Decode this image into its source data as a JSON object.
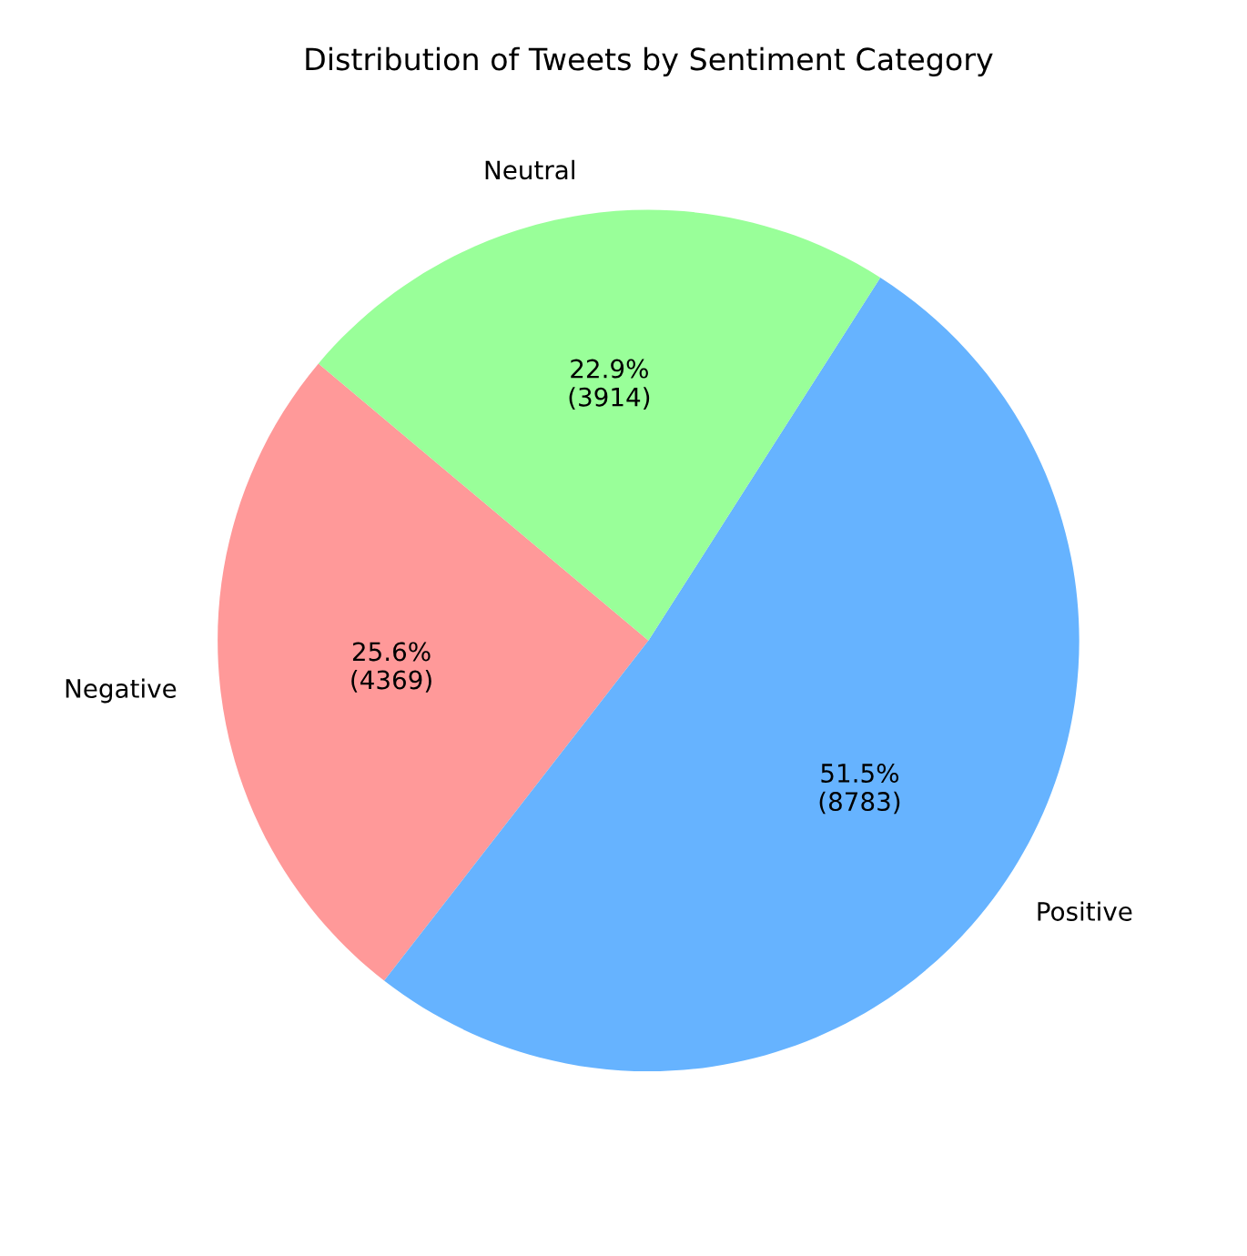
{
  "chart_data": {
    "type": "pie",
    "title": "Distribution of Tweets by Sentiment Category",
    "categories": [
      "Negative",
      "Positive",
      "Neutral"
    ],
    "values": [
      4369,
      8783,
      3914
    ],
    "colors": [
      "#ff9999",
      "#66b3ff",
      "#99ff99"
    ],
    "value_labels": [
      "25.6%\n(4369)",
      "51.5%\n(8783)",
      "22.9%\n(3914)"
    ]
  }
}
